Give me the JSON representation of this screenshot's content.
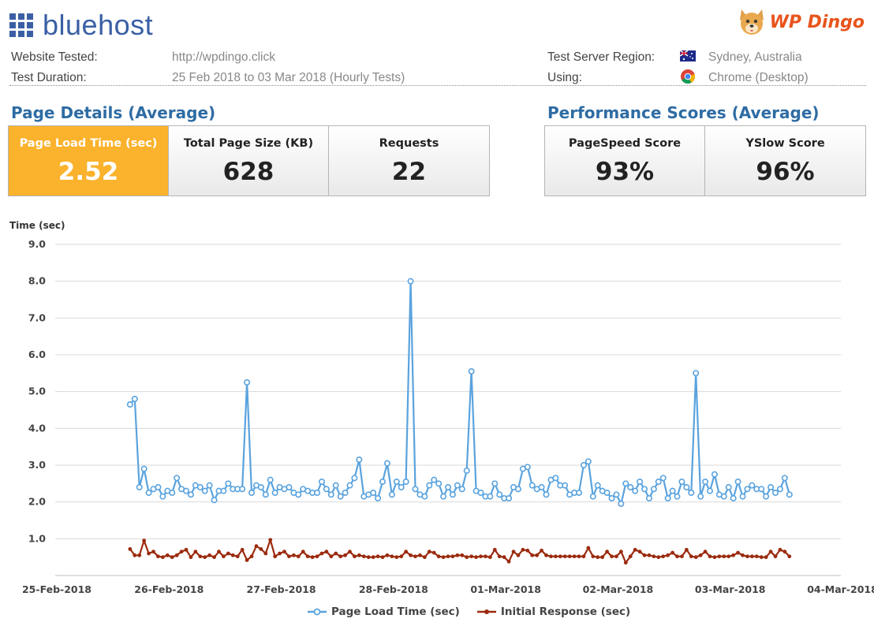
{
  "brand": {
    "host_logo": "bluehost",
    "partner_logo": "WP Dingo"
  },
  "info": {
    "website_label": "Website Tested:",
    "website_value": "http://wpdingo.click",
    "duration_label": "Test Duration:",
    "duration_value": "25 Feb 2018 to 03 Mar 2018 (Hourly Tests)",
    "region_label": "Test Server Region:",
    "region_value": "Sydney, Australia",
    "using_label": "Using:",
    "using_value": "Chrome (Desktop)"
  },
  "page_details": {
    "title": "Page Details (Average)",
    "items": [
      {
        "label": "Page Load Time (sec)",
        "value": "2.52"
      },
      {
        "label": "Total Page Size (KB)",
        "value": "628"
      },
      {
        "label": "Requests",
        "value": "22"
      }
    ]
  },
  "performance": {
    "title": "Performance Scores (Average)",
    "items": [
      {
        "label": "PageSpeed Score",
        "value": "93%"
      },
      {
        "label": "YSlow Score",
        "value": "96%"
      }
    ]
  },
  "chart_data": {
    "type": "line",
    "ylabel": "Time (sec)",
    "ylim": [
      0,
      9
    ],
    "yticks": [
      "1.0",
      "2.0",
      "3.0",
      "4.0",
      "5.0",
      "6.0",
      "7.0",
      "8.0",
      "9.0"
    ],
    "xlim": [
      "2018-02-25",
      "2018-03-04"
    ],
    "xticks": [
      "25-Feb-2018",
      "26-Feb-2018",
      "27-Feb-2018",
      "28-Feb-2018",
      "01-Mar-2018",
      "02-Mar-2018",
      "03-Mar-2018",
      "04-Mar-2018"
    ],
    "x_start": "2018-02-25 16:00",
    "x_step_hours": 1,
    "grid": true,
    "legend_position": "bottom",
    "colors": {
      "load": "#5aa3de",
      "response": "#9b2b0f"
    },
    "series": [
      {
        "name": "Page Load Time (sec)",
        "values": [
          4.65,
          4.8,
          2.4,
          2.9,
          2.25,
          2.35,
          2.4,
          2.15,
          2.3,
          2.25,
          2.65,
          2.35,
          2.3,
          2.2,
          2.45,
          2.4,
          2.3,
          2.45,
          2.05,
          2.3,
          2.3,
          2.5,
          2.35,
          2.35,
          2.35,
          5.25,
          2.25,
          2.45,
          2.4,
          2.2,
          2.6,
          2.25,
          2.4,
          2.35,
          2.4,
          2.25,
          2.2,
          2.35,
          2.3,
          2.25,
          2.25,
          2.55,
          2.35,
          2.2,
          2.45,
          2.15,
          2.25,
          2.45,
          2.65,
          3.15,
          2.15,
          2.2,
          2.25,
          2.1,
          2.55,
          3.05,
          2.2,
          2.55,
          2.4,
          2.55,
          8.0,
          2.35,
          2.2,
          2.15,
          2.45,
          2.6,
          2.5,
          2.15,
          2.4,
          2.2,
          2.45,
          2.35,
          2.85,
          5.55,
          2.3,
          2.25,
          2.15,
          2.15,
          2.5,
          2.2,
          2.1,
          2.1,
          2.4,
          2.35,
          2.9,
          2.95,
          2.45,
          2.35,
          2.4,
          2.2,
          2.6,
          2.65,
          2.45,
          2.45,
          2.2,
          2.25,
          2.25,
          3.0,
          3.1,
          2.15,
          2.45,
          2.3,
          2.25,
          2.1,
          2.2,
          1.95,
          2.5,
          2.4,
          2.3,
          2.55,
          2.35,
          2.1,
          2.35,
          2.55,
          2.65,
          2.1,
          2.3,
          2.15,
          2.55,
          2.4,
          2.25,
          5.5,
          2.15,
          2.55,
          2.3,
          2.75,
          2.2,
          2.15,
          2.4,
          2.1,
          2.55,
          2.15,
          2.35,
          2.45,
          2.35,
          2.35,
          2.15,
          2.4,
          2.25,
          2.35,
          2.65,
          2.2
        ]
      },
      {
        "name": "Initial Response (sec)",
        "values": [
          0.72,
          0.55,
          0.55,
          0.95,
          0.6,
          0.65,
          0.52,
          0.5,
          0.55,
          0.5,
          0.55,
          0.65,
          0.7,
          0.5,
          0.65,
          0.52,
          0.5,
          0.55,
          0.5,
          0.65,
          0.52,
          0.6,
          0.55,
          0.52,
          0.7,
          0.42,
          0.52,
          0.8,
          0.72,
          0.6,
          0.97,
          0.52,
          0.6,
          0.65,
          0.52,
          0.55,
          0.52,
          0.65,
          0.52,
          0.5,
          0.52,
          0.6,
          0.65,
          0.52,
          0.6,
          0.52,
          0.55,
          0.65,
          0.52,
          0.55,
          0.52,
          0.5,
          0.5,
          0.52,
          0.5,
          0.55,
          0.52,
          0.5,
          0.52,
          0.65,
          0.55,
          0.52,
          0.55,
          0.5,
          0.65,
          0.62,
          0.52,
          0.5,
          0.52,
          0.52,
          0.55,
          0.55,
          0.5,
          0.52,
          0.5,
          0.52,
          0.52,
          0.5,
          0.7,
          0.52,
          0.5,
          0.38,
          0.65,
          0.55,
          0.7,
          0.68,
          0.55,
          0.55,
          0.68,
          0.55,
          0.52,
          0.52,
          0.52,
          0.52,
          0.52,
          0.52,
          0.52,
          0.52,
          0.75,
          0.52,
          0.5,
          0.5,
          0.65,
          0.52,
          0.52,
          0.65,
          0.35,
          0.52,
          0.7,
          0.65,
          0.55,
          0.55,
          0.52,
          0.5,
          0.52,
          0.55,
          0.62,
          0.52,
          0.52,
          0.7,
          0.52,
          0.5,
          0.55,
          0.65,
          0.52,
          0.5,
          0.52,
          0.52,
          0.52,
          0.55,
          0.62,
          0.55,
          0.52,
          0.52,
          0.52,
          0.5,
          0.5,
          0.65,
          0.52,
          0.7,
          0.65,
          0.52
        ]
      }
    ]
  }
}
